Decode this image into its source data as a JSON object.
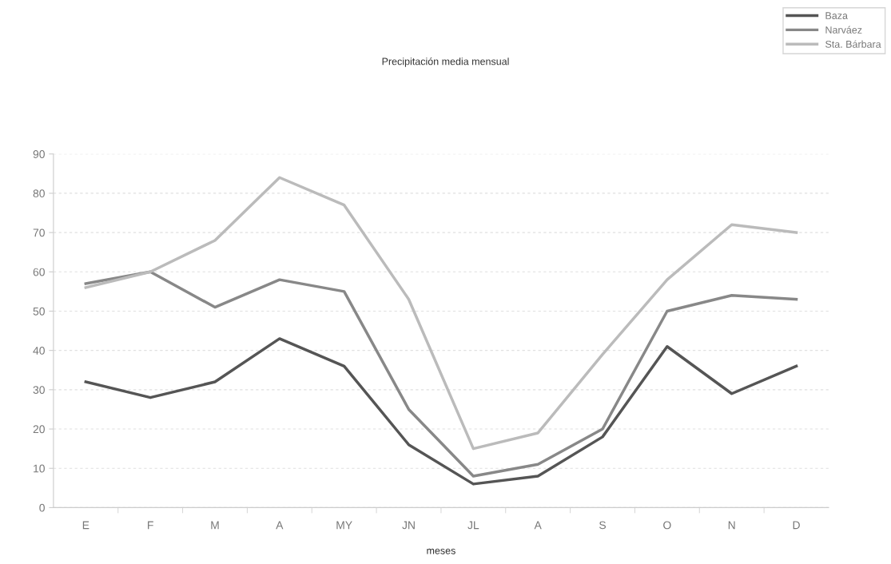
{
  "chart_data": {
    "type": "line",
    "title": "Precipitación media mensual",
    "xlabel": "meses",
    "categories": [
      "E",
      "F",
      "M",
      "A",
      "MY",
      "JN",
      "JL",
      "A",
      "S",
      "O",
      "N",
      "D"
    ],
    "series": [
      {
        "name": "Baza",
        "color": "#555555",
        "values": [
          32,
          28,
          32,
          43,
          36,
          16,
          6,
          8,
          18,
          41,
          29,
          36
        ]
      },
      {
        "name": "Narváez",
        "color": "#888888",
        "values": [
          57,
          60,
          51,
          58,
          55,
          25,
          8,
          11,
          20,
          50,
          54,
          53
        ]
      },
      {
        "name": "Sta. Bárbara",
        "color": "#bbbbbb",
        "values": [
          56,
          60,
          68,
          84,
          77,
          53,
          15,
          19,
          39,
          58,
          72,
          70
        ]
      }
    ],
    "ylim": [
      0,
      90
    ],
    "yticks": [
      0,
      10,
      20,
      30,
      40,
      50,
      60,
      70,
      80,
      90
    ],
    "grid": "y",
    "legend": "top right",
    "marker": "none",
    "line_style": "solid"
  }
}
